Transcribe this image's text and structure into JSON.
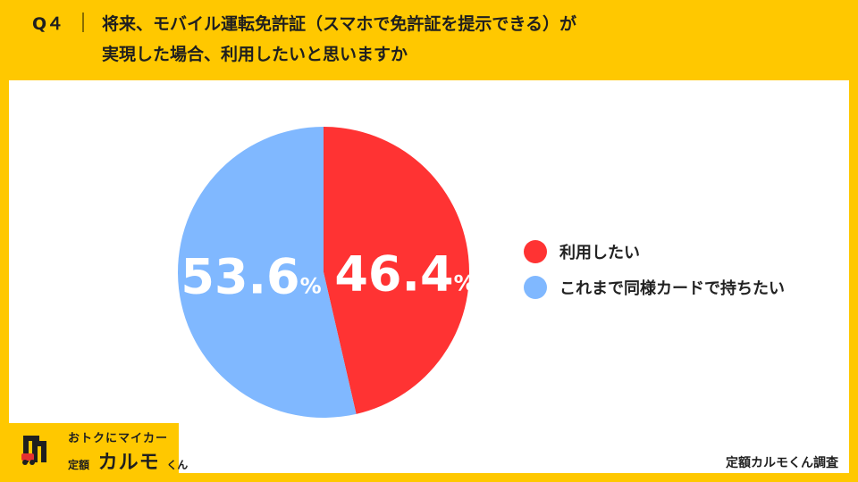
{
  "header": {
    "question": "Q４",
    "title_line1": "将来、モバイル運転免許証（スマホで免許証を提示できる）が",
    "title_line2": "実現した場合、利用したいと思いますか"
  },
  "chart_data": {
    "type": "pie",
    "title": "",
    "unit": "%",
    "start": "top",
    "direction": "clockwise",
    "slices": [
      {
        "label": "利用したい",
        "value": 46.4,
        "display": "46.4",
        "color": "#FF3333"
      },
      {
        "label": "これまで同様カードで持ちたい",
        "value": 53.6,
        "display": "53.6",
        "color": "#80B8FF"
      }
    ],
    "legend_position": "right"
  },
  "logo": {
    "line1": "おトクにマイカー",
    "line2a": "定額",
    "line2b": "カルモ",
    "line2c": "くん"
  },
  "credit": "定額カルモくん調査"
}
